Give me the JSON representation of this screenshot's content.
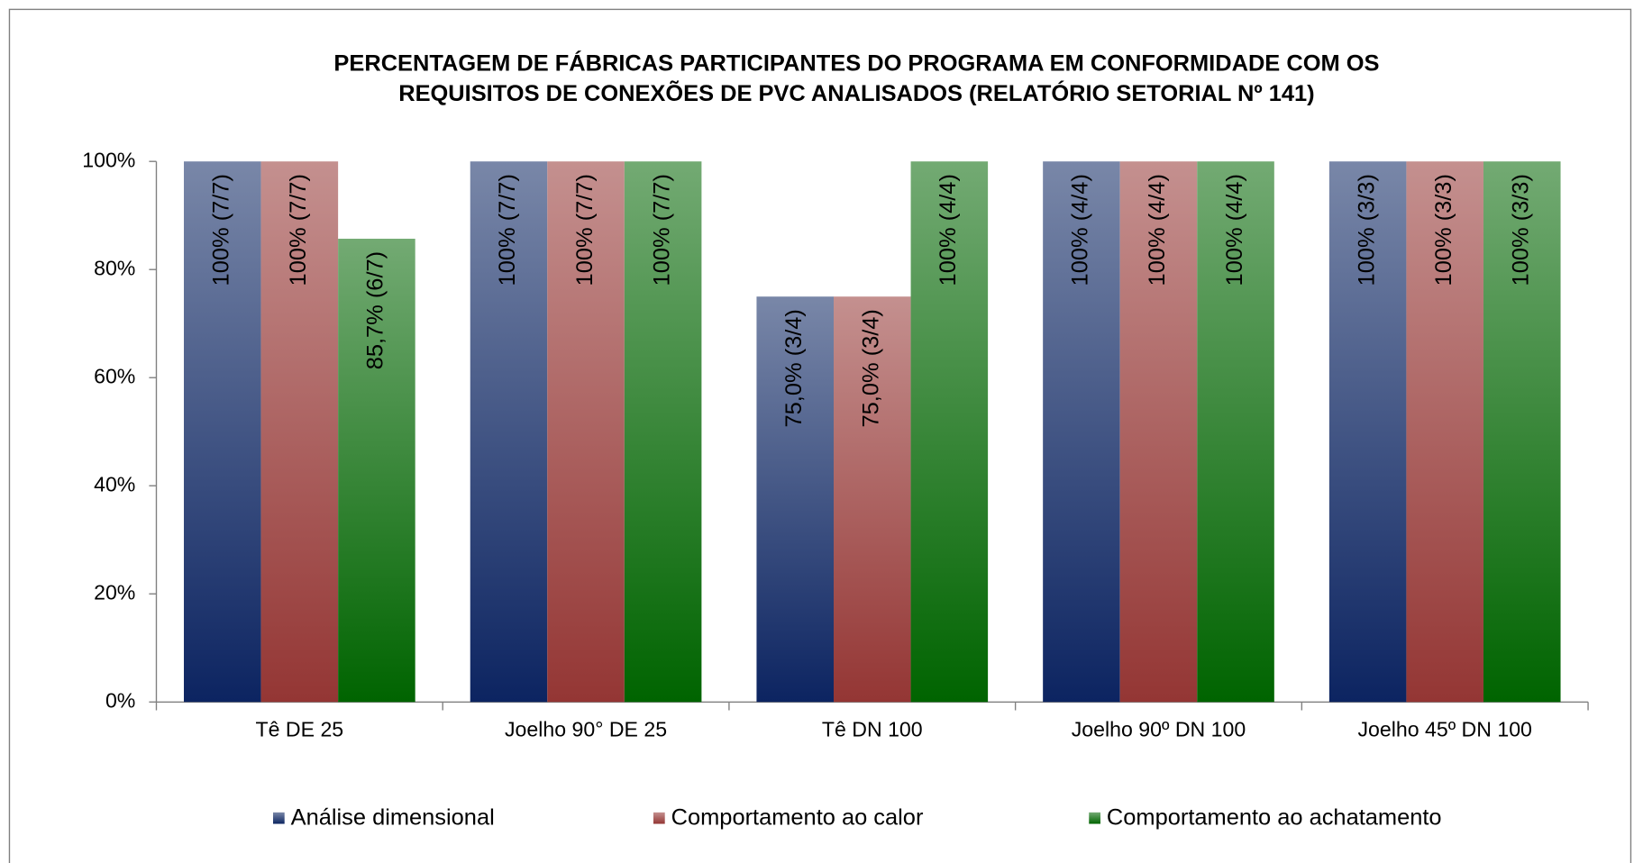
{
  "chart_data": {
    "type": "bar",
    "title": [
      "PERCENTAGEM DE FÁBRICAS PARTICIPANTES DO PROGRAMA EM CONFORMIDADE COM OS",
      "REQUISITOS DE CONEXÕES DE PVC ANALISADOS (RELATÓRIO SETORIAL Nº 141)"
    ],
    "categories": [
      "Tê DE 25",
      "Joelho 90° DE 25",
      "Tê DN 100",
      "Joelho 90º DN 100",
      "Joelho 45º DN 100"
    ],
    "series": [
      {
        "name": "Análise dimensional",
        "color": "#0c2461",
        "values": [
          100,
          100,
          75,
          100,
          100
        ],
        "value_labels": [
          "100% (7/7)",
          "100% (7/7)",
          "75,0% (3/4)",
          "100% (4/4)",
          "100% (3/3)"
        ]
      },
      {
        "name": "Comportamento ao calor",
        "color": "#943634",
        "values": [
          100,
          100,
          75,
          100,
          100
        ],
        "value_labels": [
          "100% (7/7)",
          "100% (7/7)",
          "75,0% (3/4)",
          "100% (4/4)",
          "100% (3/3)"
        ]
      },
      {
        "name": "Comportamento ao achatamento",
        "color": "#006400",
        "values": [
          85.7,
          100,
          100,
          100,
          100
        ],
        "value_labels": [
          "85,7% (6/7)",
          "100% (7/7)",
          "100% (4/4)",
          "100% (4/4)",
          "100% (3/3)"
        ]
      }
    ],
    "ylim": [
      0,
      100
    ],
    "yticks": [
      {
        "value": 0,
        "label": "0%"
      },
      {
        "value": 20,
        "label": "20%"
      },
      {
        "value": 40,
        "label": "40%"
      },
      {
        "value": 60,
        "label": "60%"
      },
      {
        "value": 80,
        "label": "80%"
      },
      {
        "value": 100,
        "label": "100%"
      }
    ],
    "legend": "bottom"
  }
}
